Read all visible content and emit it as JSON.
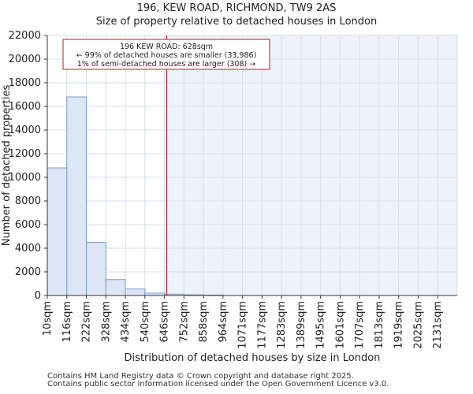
{
  "chart_data": {
    "type": "bar",
    "title": "196, KEW ROAD, RICHMOND, TW9 2AS",
    "subtitle": "Size of property relative to detached houses in London",
    "xlabel": "Distribution of detached houses by size in London",
    "ylabel": "Number of detached properties",
    "categories": [
      "10sqm",
      "116sqm",
      "222sqm",
      "328sqm",
      "434sqm",
      "540sqm",
      "646sqm",
      "752sqm",
      "858sqm",
      "964sqm",
      "1071sqm",
      "1177sqm",
      "1283sqm",
      "1389sqm",
      "1495sqm",
      "1601sqm",
      "1707sqm",
      "1813sqm",
      "1919sqm",
      "2025sqm",
      "2131sqm"
    ],
    "bin_edges": [
      10,
      116,
      222,
      328,
      434,
      540,
      646,
      752,
      858,
      964,
      1071,
      1177,
      1283,
      1389,
      1495,
      1601,
      1707,
      1813,
      1919,
      2025,
      2131
    ],
    "values": [
      10800,
      16800,
      4500,
      1350,
      550,
      200,
      110,
      60,
      40,
      0,
      0,
      0,
      0,
      0,
      0,
      0,
      0,
      0,
      0,
      0,
      0
    ],
    "ylim": [
      0,
      22000
    ],
    "yticks": [
      0,
      2000,
      4000,
      6000,
      8000,
      10000,
      12000,
      14000,
      16000,
      18000,
      20000,
      22000
    ],
    "marker": {
      "value": 628,
      "label": "196 KEW ROAD: 628sqm",
      "line1": "← 99% of detached houses are smaller (33,986)",
      "line2": "1% of semi-detached houses are larger (308) →"
    },
    "colors": {
      "bar_fill": "#dce6f4",
      "bar_stroke": "#7a9cc8",
      "highlight_bg": "#eef2fb",
      "grid": "#d6dfea",
      "marker": "#b22222"
    }
  },
  "footer": {
    "line1": "Contains HM Land Registry data © Crown copyright and database right 2025.",
    "line2": "Contains public sector information licensed under the Open Government Licence v3.0."
  }
}
